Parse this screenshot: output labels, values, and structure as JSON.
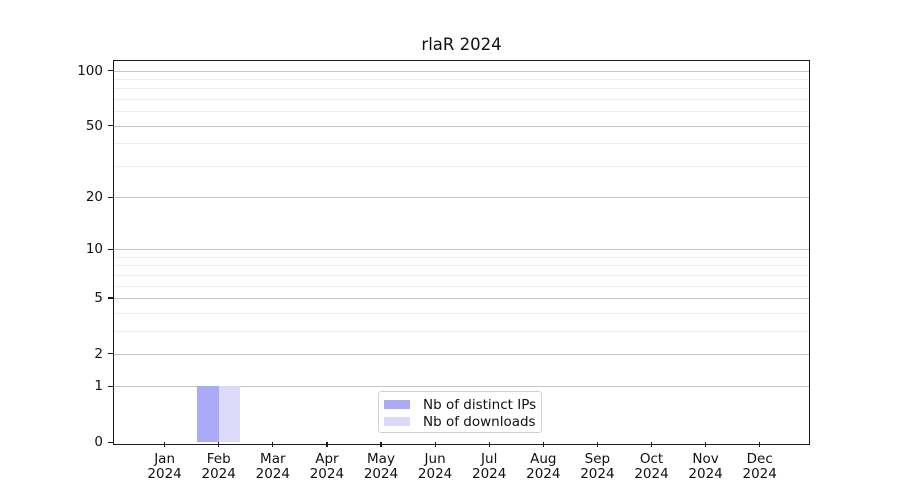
{
  "title": "rlaR 2024",
  "chart_data": {
    "type": "bar",
    "title": "rlaR 2024",
    "categories": [
      "Jan",
      "Feb",
      "Mar",
      "Apr",
      "May",
      "Jun",
      "Jul",
      "Aug",
      "Sep",
      "Oct",
      "Nov",
      "Dec"
    ],
    "year_label": "2024",
    "series": [
      {
        "name": "Nb of distinct IPs",
        "color": "#aaaaf7",
        "values": [
          0,
          1,
          0,
          0,
          0,
          0,
          0,
          0,
          0,
          0,
          0,
          0
        ]
      },
      {
        "name": "Nb of downloads",
        "color": "#dbdbf9",
        "values": [
          0,
          1,
          0,
          0,
          0,
          0,
          0,
          0,
          0,
          0,
          0,
          0
        ]
      }
    ],
    "xlabel": "",
    "ylabel": "",
    "yscale": "log1p",
    "yticks": [
      0,
      1,
      2,
      5,
      10,
      20,
      50,
      100
    ],
    "minor_gridlines": [
      3,
      4,
      6,
      7,
      8,
      9,
      30,
      40,
      60,
      70,
      80,
      90
    ],
    "ylim": [
      0,
      113
    ],
    "grid": "horizontal",
    "legend_position": "lower-center-inside",
    "colors": {
      "axis": "#1a1a1a",
      "major_grid": "#c6c6c6",
      "minor_grid": "#ededed",
      "background": "#ffffff"
    }
  }
}
